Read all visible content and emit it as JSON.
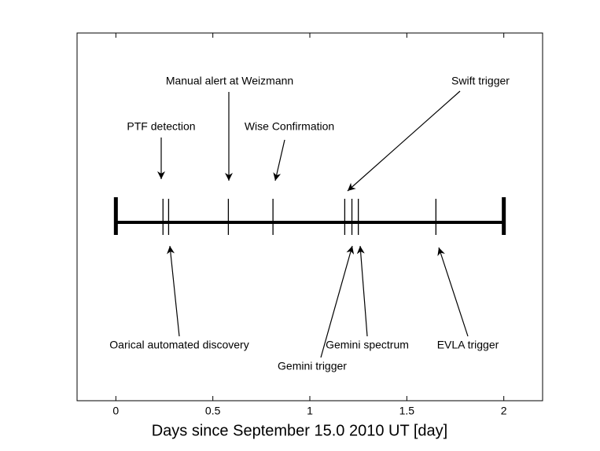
{
  "chart_data": {
    "type": "timeline",
    "xlabel": "Days since September 15.0 2010 UT [day]",
    "xlim": [
      -0.2,
      2.2
    ],
    "xticks": [
      0,
      0.5,
      1,
      1.5,
      2
    ],
    "span": [
      0,
      2
    ],
    "events": [
      {
        "name": "PTF detection",
        "x": 0.243
      },
      {
        "name": "Oarical automated discovery",
        "x": 0.272
      },
      {
        "name": "Manual alert at Weizmann",
        "x": 0.58
      },
      {
        "name": "Wise Confirmation",
        "x": 0.81
      },
      {
        "name": "Swift trigger",
        "x": 1.18
      },
      {
        "name": "Gemini trigger",
        "x": 1.217
      },
      {
        "name": "Gemini spectrum",
        "x": 1.25
      },
      {
        "name": "EVLA trigger",
        "x": 1.65
      }
    ]
  }
}
